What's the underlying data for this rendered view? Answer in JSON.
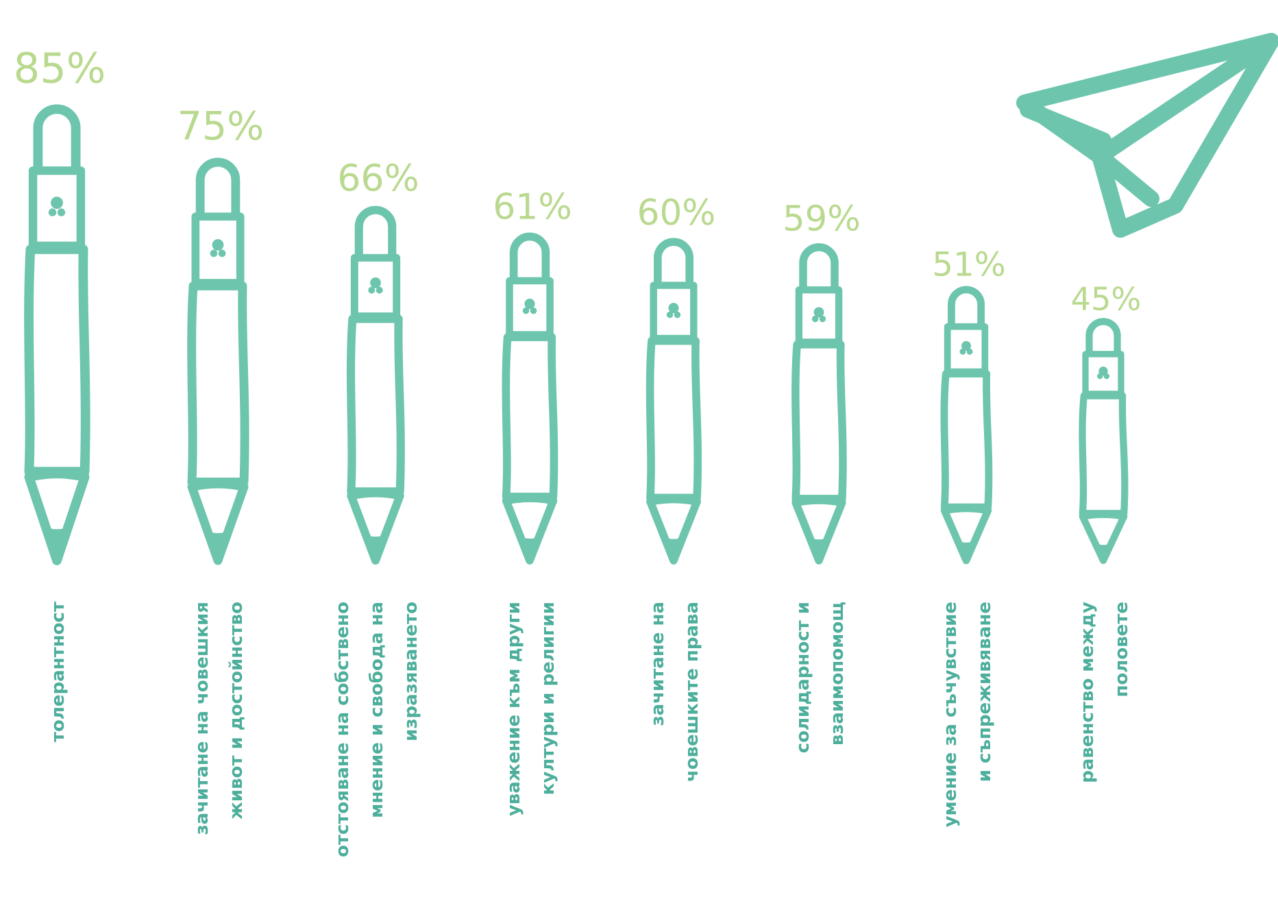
{
  "chart_data": {
    "type": "bar",
    "title": "",
    "xlabel": "",
    "ylabel": "",
    "ylim": [
      0,
      100
    ],
    "grid": false,
    "legend": "none",
    "categories": [
      [
        "толерантност"
      ],
      [
        "зачитане на човешкия",
        "живот и достойнство"
      ],
      [
        "отстояване на собствено",
        "мнение и свобода на",
        "изразяването"
      ],
      [
        "уважение към други",
        "култури и религии"
      ],
      [
        "зачитане на",
        "човешките права"
      ],
      [
        "солидарност и",
        "взаимопомощ"
      ],
      [
        "умение за съчувствие",
        "и съпреживяване"
      ],
      [
        "равенство между",
        "половете"
      ]
    ],
    "values": [
      85,
      75,
      66,
      61,
      60,
      59,
      51,
      45
    ],
    "value_labels": [
      "85%",
      "75%",
      "66%",
      "61%",
      "60%",
      "59%",
      "51%",
      "45%"
    ]
  },
  "colors": {
    "pencil": "#6cc5ac",
    "pencil_fill": "#ffffff",
    "percent": "#b9d98f",
    "label": "#4cae9b"
  },
  "icons": {
    "bar_mark": "pencil-icon",
    "decoration": "paper-plane-icon"
  }
}
